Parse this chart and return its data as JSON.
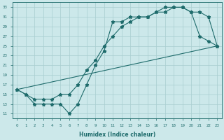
{
  "xlabel": "Humidex (Indice chaleur)",
  "bg_color": "#cce8ea",
  "grid_color": "#a8cdd0",
  "line_color": "#1e6b6b",
  "line1_x": [
    0,
    1,
    2,
    3,
    4,
    5,
    6,
    7,
    8,
    9,
    10,
    11,
    12,
    13,
    14,
    15,
    16,
    17,
    18,
    19,
    20,
    21,
    22,
    23
  ],
  "line1_y": [
    16,
    15,
    13,
    13,
    13,
    13,
    11,
    13,
    17,
    21,
    24,
    30,
    30,
    31,
    31,
    31,
    32,
    33,
    33,
    33,
    32,
    32,
    31,
    25
  ],
  "line2_x": [
    0,
    1,
    2,
    3,
    4,
    5,
    6,
    7,
    8,
    9,
    10,
    11,
    12,
    13,
    14,
    15,
    16,
    17,
    18,
    19,
    20,
    21,
    22,
    23
  ],
  "line2_y": [
    16,
    15,
    14,
    14,
    14,
    15,
    15,
    17,
    20,
    22,
    25,
    27,
    29,
    30,
    31,
    31,
    32,
    32,
    33,
    33,
    32,
    27,
    26,
    25
  ],
  "line3_x": [
    0,
    23
  ],
  "line3_y": [
    16,
    25
  ],
  "ylim": [
    10,
    34
  ],
  "xlim": [
    -0.5,
    23.5
  ],
  "yticks": [
    11,
    13,
    15,
    17,
    19,
    21,
    23,
    25,
    27,
    29,
    31,
    33
  ],
  "xticks": [
    0,
    1,
    2,
    3,
    4,
    5,
    6,
    7,
    8,
    9,
    10,
    11,
    12,
    13,
    14,
    15,
    16,
    17,
    18,
    19,
    20,
    21,
    22,
    23
  ]
}
